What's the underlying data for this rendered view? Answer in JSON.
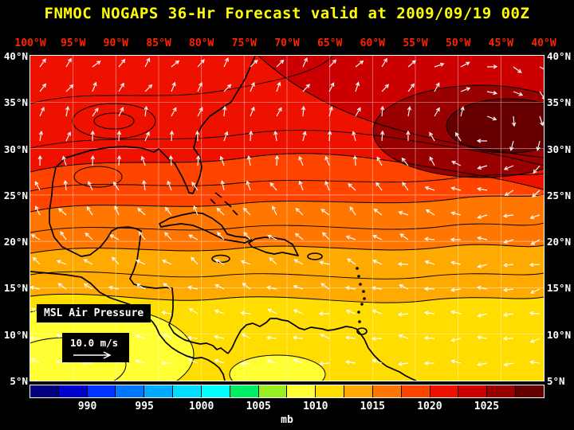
{
  "title": "FNMOC NOGAPS 36-Hr Forecast valid at 2009/09/19 00Z",
  "colors": {
    "background": "#000000",
    "title_text": "#ffff00",
    "lon_label_text": "#ff2400",
    "lat_label_text": "#ffffff",
    "contour_lines": "#000000",
    "wind_arrows": "#ffffff",
    "grid_lines": "#ffffff"
  },
  "map": {
    "lon_labels": [
      "100°W",
      "95°W",
      "90°W",
      "85°W",
      "80°W",
      "75°W",
      "70°W",
      "65°W",
      "60°W",
      "55°W",
      "50°W",
      "45°W",
      "40°W"
    ],
    "lat_labels": [
      "40°N",
      "35°N",
      "30°N",
      "25°N",
      "20°N",
      "15°N",
      "10°N",
      "5°N"
    ],
    "overlay_label": "MSL Air Pressure",
    "wind_scale_label": "10.0 m/s"
  },
  "colorbar": {
    "unit": "mb",
    "tick_labels": [
      "990",
      "995",
      "1000",
      "1005",
      "1010",
      "1015",
      "1020",
      "1025"
    ],
    "segment_colors": [
      "#000080",
      "#0000cd",
      "#0033ff",
      "#0077ff",
      "#00aaff",
      "#00ddff",
      "#00ffff",
      "#00ee66",
      "#99ee22",
      "#ffff33",
      "#ffdd00",
      "#ffaa00",
      "#ff7700",
      "#ff4400",
      "#ee1100",
      "#cc0000",
      "#990000",
      "#660000"
    ]
  }
}
